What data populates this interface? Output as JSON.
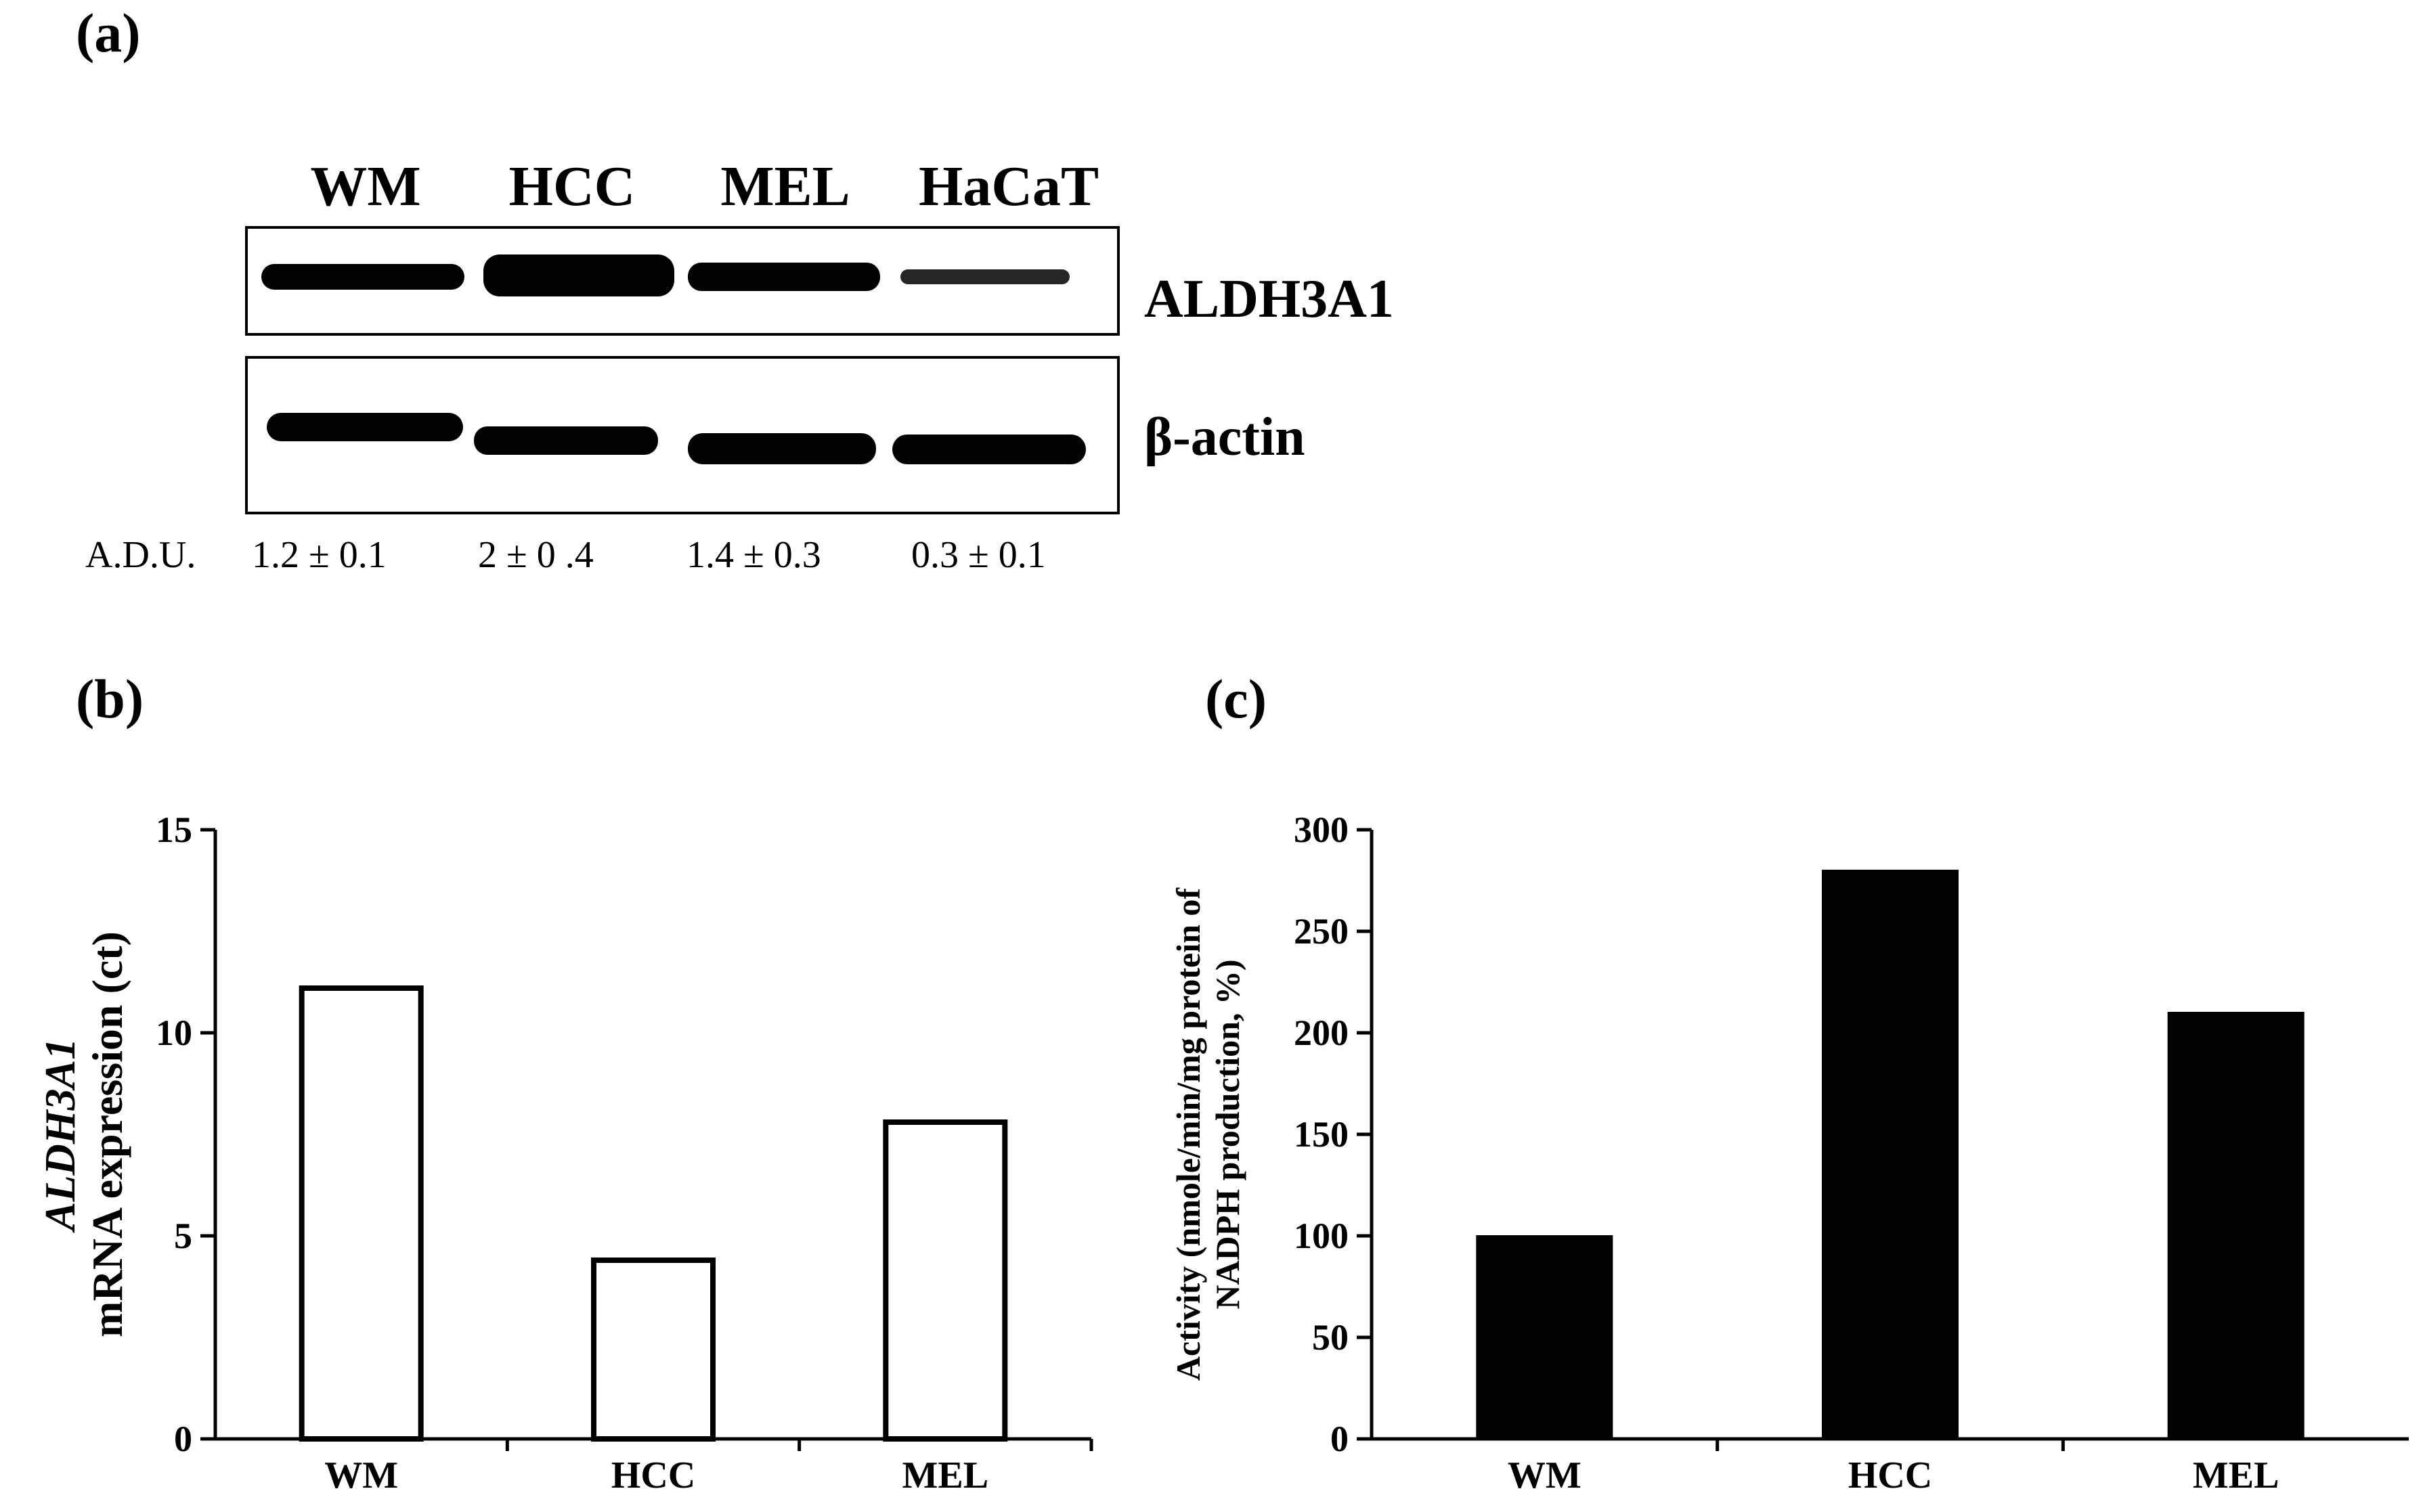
{
  "panels": {
    "a": "(a)",
    "b": "(b)",
    "c": "(c)"
  },
  "blot": {
    "lanes": [
      "WM",
      "HCC",
      "MEL",
      "HaCaT"
    ],
    "proteins": [
      "ALDH3A1",
      "β-actin"
    ],
    "adu_label": "A.D.U.",
    "adu_values": [
      "1.2 ± 0.1",
      "2 ± 0 .4",
      "1.4 ± 0.3",
      "0.3 ± 0.1"
    ],
    "band_color": "#000000"
  },
  "chart_data": [
    {
      "type": "bar",
      "categories": [
        "WM",
        "HCC",
        "MEL"
      ],
      "values": [
        11.1,
        4.4,
        7.8
      ],
      "ylim": [
        0,
        15
      ],
      "yticks": [
        0,
        5,
        10,
        15
      ],
      "ylabel_italic": "ALDH3A1",
      "ylabel": "mRNA expression (ct)",
      "bar_fill": "#ffffff",
      "bar_stroke": "#000000",
      "grid": false
    },
    {
      "type": "bar",
      "categories": [
        "WM",
        "HCC",
        "MEL"
      ],
      "values": [
        100,
        280,
        210
      ],
      "ylim": [
        0,
        300
      ],
      "yticks": [
        0,
        50,
        100,
        150,
        200,
        250,
        300
      ],
      "ylabel_line1": "Activity (nmole/min/mg protein of",
      "ylabel_line2": "NADPH production, %)",
      "bar_fill": "#000000",
      "bar_stroke": "#000000",
      "grid": false
    }
  ]
}
